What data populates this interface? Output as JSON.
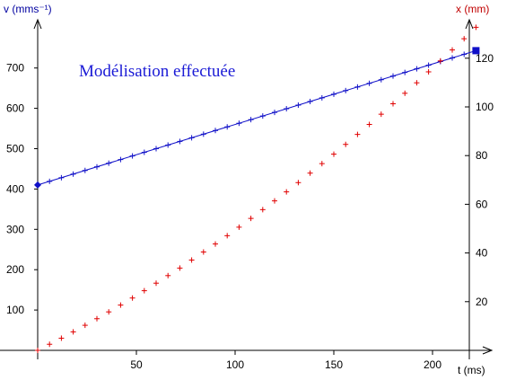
{
  "chart_data": {
    "type": "scatter",
    "annotation": "Modélisation effectuée",
    "x_axis": {
      "label": "t  (ms)",
      "ticks": [
        50,
        100,
        150,
        200
      ],
      "range": [
        -11,
        222
      ]
    },
    "y_left": {
      "label": "v (mms⁻¹)",
      "ticks": [
        100,
        200,
        300,
        400,
        500,
        600,
        700
      ],
      "range": [
        0,
        820
      ]
    },
    "y_right": {
      "label": "x (mm)",
      "ticks": [
        20,
        40,
        60,
        80,
        100,
        120
      ],
      "range": [
        0,
        137
      ]
    },
    "grid": false,
    "series": [
      {
        "axis": "left",
        "style": "crosses-with-model-line",
        "color": "#1010c8",
        "x": [
          0,
          6,
          12,
          18,
          24,
          30,
          36,
          42,
          48,
          54,
          60,
          66,
          72,
          78,
          84,
          90,
          96,
          102,
          108,
          114,
          120,
          126,
          132,
          138,
          144,
          150,
          156,
          162,
          168,
          174,
          180,
          186,
          192,
          198,
          204,
          210,
          216,
          222
        ],
        "y": [
          410,
          419,
          428,
          437,
          446,
          455,
          464,
          473,
          482,
          491,
          500,
          509,
          518,
          527,
          536,
          545,
          554,
          563,
          572,
          581,
          590,
          599,
          608,
          617,
          626,
          635,
          644,
          653,
          662,
          671,
          680,
          689,
          698,
          707,
          716,
          725,
          734,
          743
        ]
      },
      {
        "axis": "right",
        "style": "crosses",
        "color": "#e00000",
        "x": [
          0,
          6,
          12,
          18,
          24,
          30,
          36,
          42,
          48,
          54,
          60,
          66,
          72,
          78,
          84,
          90,
          96,
          102,
          108,
          114,
          120,
          126,
          132,
          138,
          144,
          150,
          156,
          162,
          168,
          174,
          180,
          186,
          192,
          198,
          204,
          210,
          216,
          222
        ],
        "y": [
          0.0,
          2.5,
          5.0,
          7.6,
          10.3,
          13.0,
          15.8,
          18.6,
          21.5,
          24.5,
          27.6,
          30.7,
          33.8,
          37.1,
          40.4,
          43.7,
          47.1,
          50.6,
          54.2,
          57.8,
          61.4,
          65.1,
          68.9,
          72.8,
          76.7,
          80.6,
          84.6,
          88.7,
          92.8,
          97.0,
          101.3,
          105.6,
          109.9,
          114.4,
          118.9,
          123.4,
          128.0,
          132.7
        ]
      }
    ]
  },
  "colors": {
    "left_axis": "#0000a0",
    "right_axis": "#c00000",
    "blue": "#1010c8",
    "red": "#e00000"
  }
}
